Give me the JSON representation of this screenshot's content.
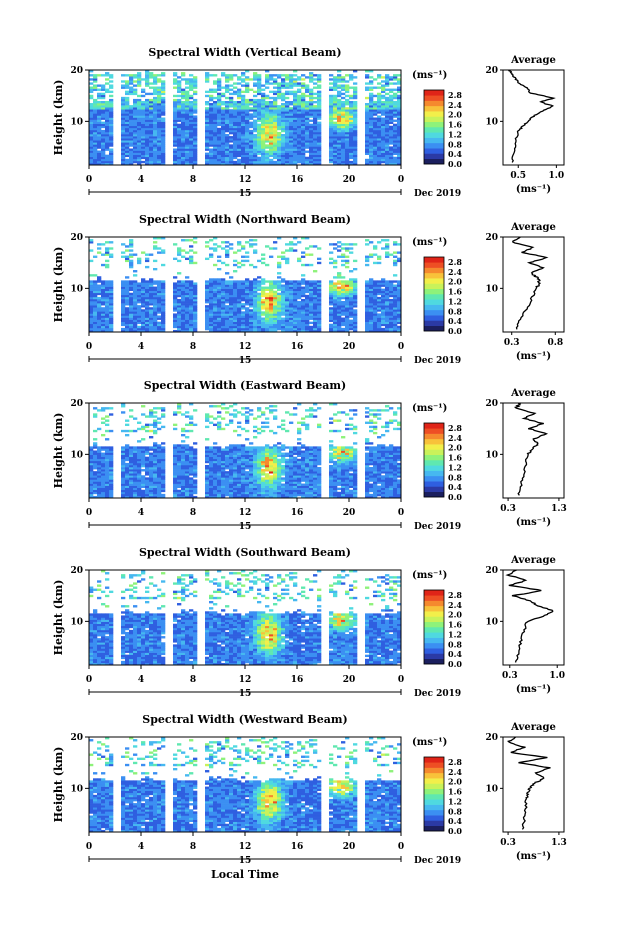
{
  "chart_data": {
    "type": "heatmap",
    "date_label": "Dec 2019",
    "xlabel": "Local Time",
    "x_ticks": [
      "0",
      "4",
      "8",
      "12",
      "16",
      "20",
      "0"
    ],
    "day_label": "15",
    "ylabel": "Height (km)",
    "y_ticks": [
      "20",
      "10"
    ],
    "ylim": [
      1.5,
      20
    ],
    "colorbar": {
      "unit_label": "(ms⁻¹)",
      "ticks": [
        "2.8",
        "2.4",
        "2.0",
        "1.6",
        "1.2",
        "0.8",
        "0.4",
        "0.0"
      ],
      "range": [
        0.0,
        3.0
      ],
      "colors": [
        "#1b1f5e",
        "#2b3aa5",
        "#2f5fe0",
        "#3b8ff2",
        "#46b8f0",
        "#4fd9e0",
        "#5fe8b0",
        "#8ef27a",
        "#c9f25a",
        "#f2ef4a",
        "#f8c23a",
        "#f58a2e",
        "#ee4f24",
        "#e02418"
      ]
    },
    "average_profile": {
      "title": "Average",
      "xlabel": "(ms⁻¹)"
    },
    "panels": [
      {
        "title": "Spectral Width (Vertical Beam)",
        "avg_ticks": [
          "0.5",
          "1.0"
        ],
        "avg_range": [
          0.3,
          1.1
        ],
        "profile": [
          [
            2,
            0.42
          ],
          [
            4,
            0.45
          ],
          [
            6,
            0.46
          ],
          [
            8,
            0.5
          ],
          [
            9,
            0.55
          ],
          [
            10,
            0.62
          ],
          [
            11,
            0.7
          ],
          [
            12,
            0.82
          ],
          [
            13,
            0.95
          ],
          [
            13.8,
            0.78
          ],
          [
            14.5,
            0.98
          ],
          [
            15.5,
            0.66
          ],
          [
            16.5,
            0.62
          ],
          [
            17.5,
            0.5
          ],
          [
            18.5,
            0.45
          ],
          [
            19.5,
            0.4
          ],
          [
            20,
            0.38
          ]
        ]
      },
      {
        "title": "Spectral Width (Northward Beam)",
        "avg_ticks": [
          "0.3",
          "0.8"
        ],
        "avg_range": [
          0.2,
          0.9
        ],
        "profile": [
          [
            2,
            0.35
          ],
          [
            4,
            0.4
          ],
          [
            6,
            0.47
          ],
          [
            8,
            0.53
          ],
          [
            10,
            0.58
          ],
          [
            11,
            0.62
          ],
          [
            12,
            0.6
          ],
          [
            13,
            0.52
          ],
          [
            14,
            0.66
          ],
          [
            15,
            0.5
          ],
          [
            16,
            0.71
          ],
          [
            17,
            0.42
          ],
          [
            18,
            0.55
          ],
          [
            19,
            0.3
          ],
          [
            20,
            0.4
          ]
        ]
      },
      {
        "title": "Spectral Width (Eastward Beam)",
        "avg_ticks": [
          "0.3",
          "1.3"
        ],
        "avg_range": [
          0.2,
          1.4
        ],
        "profile": [
          [
            2,
            0.5
          ],
          [
            4,
            0.56
          ],
          [
            6,
            0.6
          ],
          [
            8,
            0.64
          ],
          [
            10,
            0.68
          ],
          [
            11,
            0.78
          ],
          [
            12,
            0.88
          ],
          [
            13,
            0.8
          ],
          [
            14,
            1.05
          ],
          [
            15,
            0.72
          ],
          [
            16,
            0.98
          ],
          [
            17,
            0.62
          ],
          [
            18,
            0.82
          ],
          [
            19,
            0.45
          ],
          [
            20,
            0.55
          ]
        ]
      },
      {
        "title": "Spectral Width (Southward Beam)",
        "avg_ticks": [
          "0.3",
          "1.0"
        ],
        "avg_range": [
          0.2,
          1.1
        ],
        "profile": [
          [
            2,
            0.4
          ],
          [
            4,
            0.43
          ],
          [
            6,
            0.46
          ],
          [
            8,
            0.5
          ],
          [
            10,
            0.56
          ],
          [
            11,
            0.8
          ],
          [
            12,
            0.95
          ],
          [
            13,
            0.72
          ],
          [
            14,
            0.6
          ],
          [
            15,
            0.35
          ],
          [
            16,
            0.78
          ],
          [
            17,
            0.3
          ],
          [
            18,
            0.55
          ],
          [
            19,
            0.28
          ],
          [
            20,
            0.4
          ]
        ]
      },
      {
        "title": "Spectral Width (Westward Beam)",
        "avg_ticks": [
          "0.3",
          "1.3"
        ],
        "avg_range": [
          0.2,
          1.4
        ],
        "profile": [
          [
            2,
            0.58
          ],
          [
            4,
            0.62
          ],
          [
            6,
            0.64
          ],
          [
            8,
            0.66
          ],
          [
            9,
            0.68
          ],
          [
            10,
            0.72
          ],
          [
            11,
            0.82
          ],
          [
            12,
            1.02
          ],
          [
            13,
            0.85
          ],
          [
            14,
            1.12
          ],
          [
            15,
            0.52
          ],
          [
            16,
            1.05
          ],
          [
            17,
            0.35
          ],
          [
            18,
            0.62
          ],
          [
            19,
            0.3
          ],
          [
            20,
            0.45
          ]
        ]
      }
    ]
  }
}
